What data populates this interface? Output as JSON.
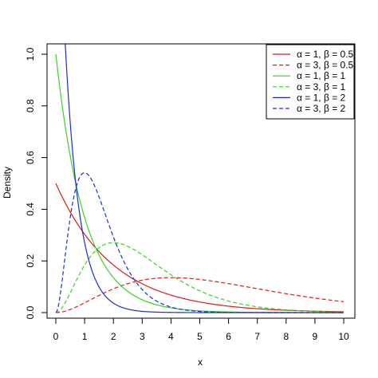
{
  "chart_data": {
    "type": "line",
    "title": "",
    "xlabel": "x",
    "ylabel": "Density",
    "xlim": [
      0,
      10
    ],
    "ylim": [
      0,
      1.0
    ],
    "x_ticks": [
      0,
      1,
      2,
      3,
      4,
      5,
      6,
      7,
      8,
      9,
      10
    ],
    "x_tick_labels": [
      "0",
      "1",
      "2",
      "3",
      "4",
      "5",
      "6",
      "7",
      "8",
      "9",
      "10"
    ],
    "y_ticks": [
      0,
      0.2,
      0.4,
      0.6,
      0.8,
      1.0
    ],
    "y_tick_labels": [
      "0.0",
      "0.2",
      "0.4",
      "0.6",
      "0.8",
      "1.0"
    ],
    "grid": false,
    "legend_position": "top-right",
    "series": [
      {
        "name": "α = 1, β = 0.5",
        "alpha": 1,
        "beta": 0.5,
        "color": "#e0191a",
        "dash": "solid"
      },
      {
        "name": "α = 3, β = 0.5",
        "alpha": 3,
        "beta": 0.5,
        "color": "#e0191a",
        "dash": "dashed"
      },
      {
        "name": "α = 1, β = 1",
        "alpha": 1,
        "beta": 1,
        "color": "#33d623",
        "dash": "solid"
      },
      {
        "name": "α = 3, β = 1",
        "alpha": 3,
        "beta": 1,
        "color": "#33d623",
        "dash": "dashed"
      },
      {
        "name": "α = 1, β = 2",
        "alpha": 1,
        "beta": 2,
        "color": "#1a2cd8",
        "dash": "solid"
      },
      {
        "name": "α = 3, β = 2",
        "alpha": 3,
        "beta": 2,
        "color": "#1a2cd8",
        "dash": "dashed"
      }
    ]
  }
}
